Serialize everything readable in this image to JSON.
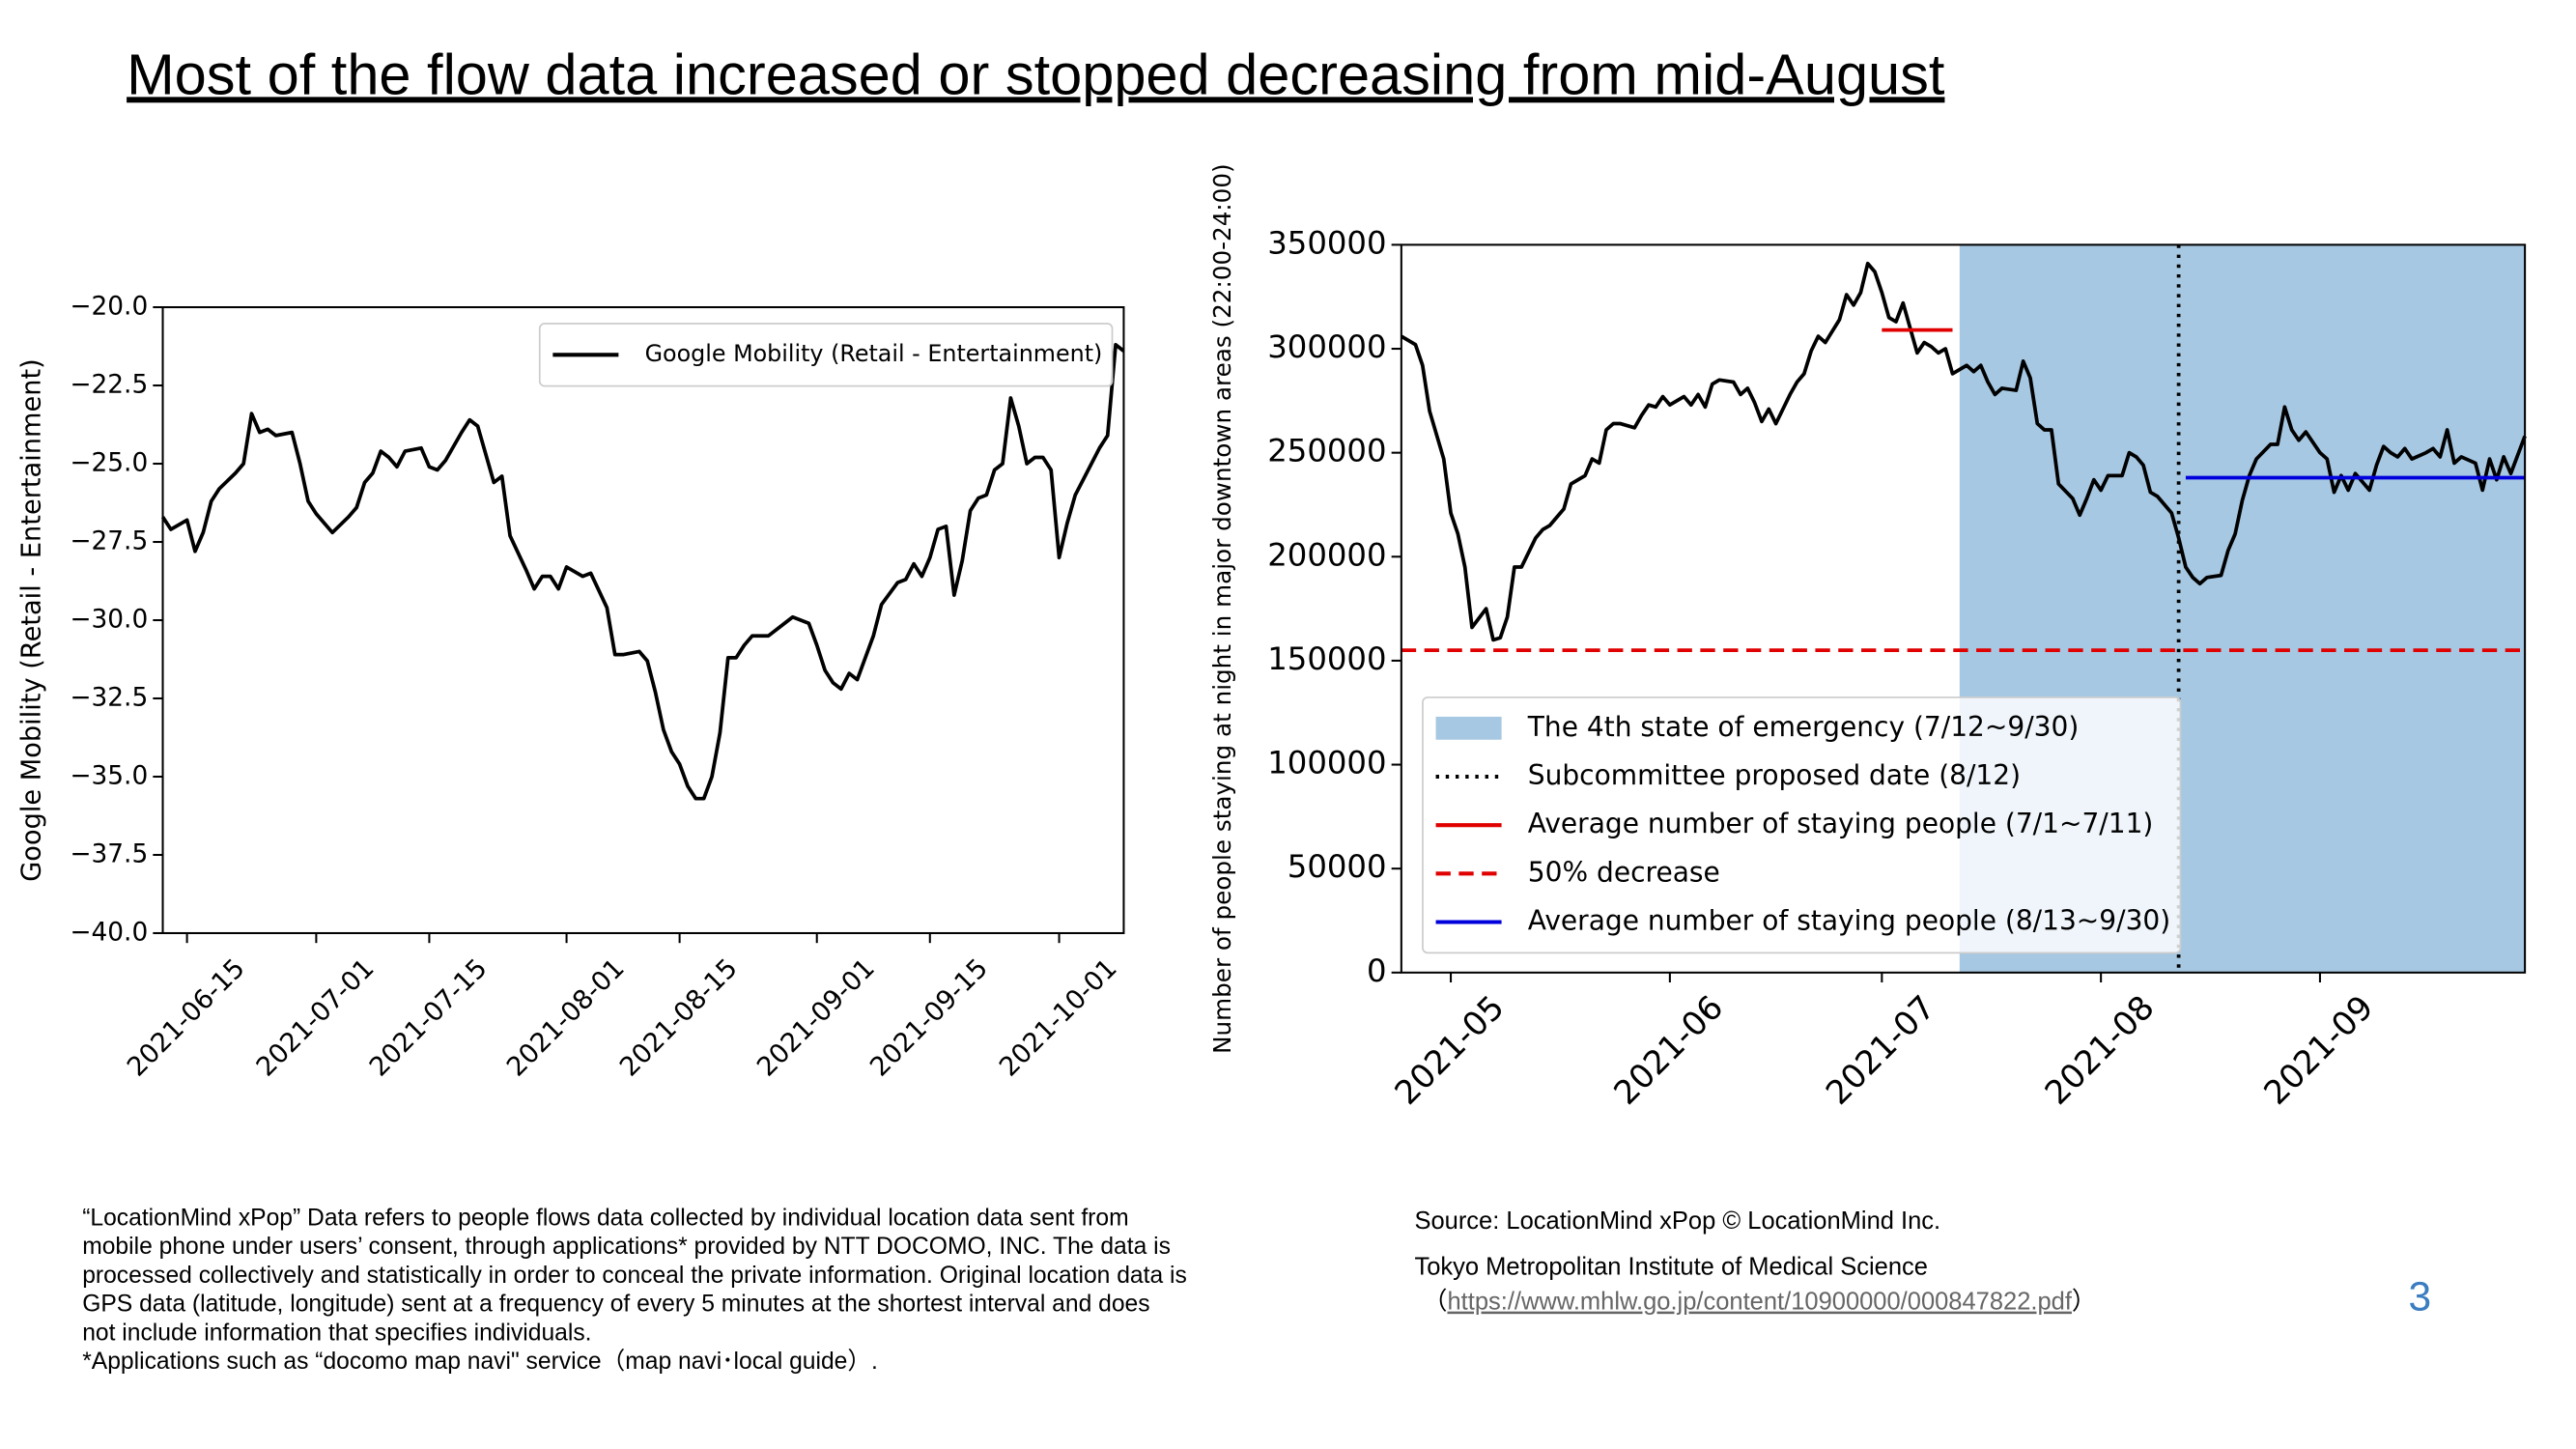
{
  "title": "Most of the flow data increased or stopped decreasing from mid-August",
  "chart_data": [
    {
      "type": "line",
      "ylabel": "Google Mobility (Retail - Entertainment)",
      "x": [
        "2021-06-12",
        "2021-06-13",
        "2021-06-15",
        "2021-06-16",
        "2021-06-17",
        "2021-06-18",
        "2021-06-19",
        "2021-06-21",
        "2021-06-22",
        "2021-06-23",
        "2021-06-24",
        "2021-06-25",
        "2021-06-26",
        "2021-06-28",
        "2021-06-29",
        "2021-06-30",
        "2021-07-01",
        "2021-07-03",
        "2021-07-05",
        "2021-07-06",
        "2021-07-07",
        "2021-07-08",
        "2021-07-09",
        "2021-07-10",
        "2021-07-11",
        "2021-07-12",
        "2021-07-14",
        "2021-07-15",
        "2021-07-16",
        "2021-07-17",
        "2021-07-19",
        "2021-07-20",
        "2021-07-21",
        "2021-07-23",
        "2021-07-24",
        "2021-07-25",
        "2021-07-27",
        "2021-07-28",
        "2021-07-29",
        "2021-07-30",
        "2021-07-31",
        "2021-08-01",
        "2021-08-03",
        "2021-08-04",
        "2021-08-06",
        "2021-08-07",
        "2021-08-08",
        "2021-08-10",
        "2021-08-11",
        "2021-08-12",
        "2021-08-13",
        "2021-08-14",
        "2021-08-15",
        "2021-08-16",
        "2021-08-17",
        "2021-08-18",
        "2021-08-19",
        "2021-08-20",
        "2021-08-21",
        "2021-08-22",
        "2021-08-23",
        "2021-08-24",
        "2021-08-26",
        "2021-08-28",
        "2021-08-29",
        "2021-08-31",
        "2021-09-01",
        "2021-09-02",
        "2021-09-03",
        "2021-09-04",
        "2021-09-05",
        "2021-09-06",
        "2021-09-07",
        "2021-09-08",
        "2021-09-09",
        "2021-09-11",
        "2021-09-12",
        "2021-09-13",
        "2021-09-14",
        "2021-09-15",
        "2021-09-16",
        "2021-09-17",
        "2021-09-18",
        "2021-09-19",
        "2021-09-20",
        "2021-09-21",
        "2021-09-22",
        "2021-09-23",
        "2021-09-24",
        "2021-09-25",
        "2021-09-26",
        "2021-09-27",
        "2021-09-28",
        "2021-09-29",
        "2021-09-30",
        "2021-10-01",
        "2021-10-02",
        "2021-10-03",
        "2021-10-04",
        "2021-10-05",
        "2021-10-06",
        "2021-10-07",
        "2021-10-08",
        "2021-10-09"
      ],
      "series": [
        {
          "name": "Google Mobility (Retail - Entertainment)",
          "color": "#000000",
          "values": [
            -26.7,
            -27.1,
            -26.8,
            -27.8,
            -27.2,
            -26.2,
            -25.8,
            -25.3,
            -25.0,
            -23.4,
            -24.0,
            -23.9,
            -24.1,
            -24.0,
            -25.0,
            -26.2,
            -26.6,
            -27.2,
            -26.7,
            -26.4,
            -25.6,
            -25.3,
            -24.6,
            -24.8,
            -25.1,
            -24.6,
            -24.5,
            -25.1,
            -25.2,
            -24.9,
            -24.0,
            -23.6,
            -23.8,
            -25.6,
            -25.4,
            -27.3,
            -28.4,
            -29.0,
            -28.6,
            -28.6,
            -29.0,
            -28.3,
            -28.6,
            -28.5,
            -29.6,
            -31.1,
            -31.1,
            -31.0,
            -31.3,
            -32.3,
            -33.5,
            -34.2,
            -34.6,
            -35.3,
            -35.7,
            -35.7,
            -35.0,
            -33.6,
            -31.2,
            -31.2,
            -30.8,
            -30.5,
            -30.5,
            -30.1,
            -29.9,
            -30.1,
            -30.8,
            -31.6,
            -32.0,
            -32.2,
            -31.7,
            -31.9,
            -31.2,
            -30.5,
            -29.5,
            -28.8,
            -28.7,
            -28.2,
            -28.6,
            -28.0,
            -27.1,
            -27.0,
            -29.2,
            -28.1,
            -26.5,
            -26.1,
            -26.0,
            -25.2,
            -25.0,
            -22.9,
            -23.8,
            -25.0,
            -24.8,
            -24.8,
            -25.2,
            -28.0,
            -26.9,
            -26.0,
            -25.5,
            -25.0,
            -24.5,
            -24.1,
            -21.2,
            -21.4
          ]
        }
      ],
      "xlim": [
        "2021-06-12",
        "2021-10-09"
      ],
      "xticks": [
        "2021-06-15",
        "2021-07-01",
        "2021-07-15",
        "2021-08-01",
        "2021-08-15",
        "2021-09-01",
        "2021-09-15",
        "2021-10-01"
      ],
      "ylim": [
        -40,
        -20
      ],
      "yticks": [
        {
          "value": -40,
          "label": "−40.0"
        },
        {
          "value": -37.5,
          "label": "−37.5"
        },
        {
          "value": -35,
          "label": "−35.0"
        },
        {
          "value": -32.5,
          "label": "−32.5"
        },
        {
          "value": -30,
          "label": "−30.0"
        },
        {
          "value": -27.5,
          "label": "−27.5"
        },
        {
          "value": -25,
          "label": "−25.0"
        },
        {
          "value": -22.5,
          "label": "−22.5"
        },
        {
          "value": -20,
          "label": "−20.0"
        }
      ],
      "legend": "upper right"
    },
    {
      "type": "line",
      "ylabel": "Number of people staying at night in major downtown areas (22:00-24:00)",
      "x": [
        "2021-04-24",
        "2021-04-26",
        "2021-04-27",
        "2021-04-28",
        "2021-04-30",
        "2021-05-01",
        "2021-05-02",
        "2021-05-03",
        "2021-05-04",
        "2021-05-06",
        "2021-05-07",
        "2021-05-08",
        "2021-05-09",
        "2021-05-10",
        "2021-05-11",
        "2021-05-13",
        "2021-05-14",
        "2021-05-15",
        "2021-05-16",
        "2021-05-17",
        "2021-05-18",
        "2021-05-20",
        "2021-05-21",
        "2021-05-22",
        "2021-05-23",
        "2021-05-24",
        "2021-05-25",
        "2021-05-27",
        "2021-05-28",
        "2021-05-29",
        "2021-05-30",
        "2021-05-31",
        "2021-06-01",
        "2021-06-03",
        "2021-06-04",
        "2021-06-05",
        "2021-06-06",
        "2021-06-07",
        "2021-06-08",
        "2021-06-10",
        "2021-06-11",
        "2021-06-12",
        "2021-06-13",
        "2021-06-14",
        "2021-06-15",
        "2021-06-16",
        "2021-06-18",
        "2021-06-19",
        "2021-06-20",
        "2021-06-21",
        "2021-06-22",
        "2021-06-23",
        "2021-06-25",
        "2021-06-26",
        "2021-06-27",
        "2021-06-28",
        "2021-06-29",
        "2021-06-30",
        "2021-07-01",
        "2021-07-02",
        "2021-07-03",
        "2021-07-04",
        "2021-07-06",
        "2021-07-07",
        "2021-07-08",
        "2021-07-09",
        "2021-07-10",
        "2021-07-11",
        "2021-07-13",
        "2021-07-14",
        "2021-07-15",
        "2021-07-16",
        "2021-07-17",
        "2021-07-18",
        "2021-07-20",
        "2021-07-21",
        "2021-07-22",
        "2021-07-23",
        "2021-07-24",
        "2021-07-25",
        "2021-07-26",
        "2021-07-28",
        "2021-07-29",
        "2021-07-30",
        "2021-07-31",
        "2021-08-01",
        "2021-08-02",
        "2021-08-04",
        "2021-08-05",
        "2021-08-06",
        "2021-08-07",
        "2021-08-08",
        "2021-08-09",
        "2021-08-11",
        "2021-08-12",
        "2021-08-13",
        "2021-08-14",
        "2021-08-15",
        "2021-08-16",
        "2021-08-18",
        "2021-08-19",
        "2021-08-20",
        "2021-08-21",
        "2021-08-22",
        "2021-08-23",
        "2021-08-25",
        "2021-08-26",
        "2021-08-27",
        "2021-08-28",
        "2021-08-29",
        "2021-08-30",
        "2021-09-01",
        "2021-09-02",
        "2021-09-03",
        "2021-09-04",
        "2021-09-05",
        "2021-09-06",
        "2021-09-08",
        "2021-09-09",
        "2021-09-10",
        "2021-09-11",
        "2021-09-12",
        "2021-09-13",
        "2021-09-14",
        "2021-09-16",
        "2021-09-17",
        "2021-09-18",
        "2021-09-19",
        "2021-09-20",
        "2021-09-21",
        "2021-09-23",
        "2021-09-24",
        "2021-09-25",
        "2021-09-26",
        "2021-09-27",
        "2021-09-28",
        "2021-09-30"
      ],
      "series": [
        {
          "color": "#000000",
          "values": [
            306000,
            302000,
            292000,
            270000,
            247000,
            221000,
            211000,
            195000,
            166000,
            175000,
            160000,
            161000,
            171000,
            195000,
            195000,
            209000,
            213000,
            215000,
            219000,
            223000,
            235000,
            239000,
            247000,
            245000,
            261000,
            264000,
            264000,
            262000,
            268000,
            273000,
            272000,
            277000,
            273000,
            277000,
            273000,
            278000,
            272000,
            283000,
            285000,
            284000,
            278000,
            281000,
            274000,
            265000,
            271000,
            264000,
            278000,
            284000,
            288000,
            299000,
            306000,
            303000,
            314000,
            326000,
            321000,
            327000,
            341000,
            337000,
            327000,
            315000,
            313000,
            322000,
            298000,
            303000,
            301000,
            298000,
            300000,
            288000,
            292000,
            289000,
            292000,
            284000,
            278000,
            281000,
            280000,
            294000,
            286000,
            264000,
            261000,
            261000,
            235000,
            228000,
            220000,
            228000,
            237000,
            232000,
            239000,
            239000,
            250000,
            248000,
            244000,
            231000,
            229000,
            221000,
            209000,
            195000,
            190000,
            187000,
            190000,
            191000,
            203000,
            211000,
            227000,
            239000,
            247000,
            254000,
            254000,
            272000,
            261000,
            256000,
            260000,
            250000,
            247000,
            231000,
            239000,
            232000,
            240000,
            232000,
            244000,
            253000,
            250000,
            248000,
            252000,
            247000,
            250000,
            252000,
            248000,
            261000,
            245000,
            248000,
            245000,
            232000,
            247000,
            237000,
            248000,
            240000,
            258000
          ]
        }
      ],
      "spans": [
        {
          "name": "The 4th state of emergency (7/12~9/30)",
          "from": "2021-07-12",
          "to": "2021-09-30",
          "color": "#a6c8e2"
        }
      ],
      "vlines": [
        {
          "name": "Subcommittee proposed date (8/12)",
          "x": "2021-08-12",
          "color": "#000000",
          "style": "dotted"
        }
      ],
      "hlines": [
        {
          "name": "Average number of staying people (7/1~7/11)",
          "y": 309000,
          "from": "2021-07-01",
          "to": "2021-07-11",
          "color": "#e00000",
          "style": "solid"
        },
        {
          "name": "50% decrease",
          "y": 155000,
          "color": "#e00000",
          "style": "dashed"
        },
        {
          "name": "Average number of staying people (8/13~9/30)",
          "y": 238000,
          "from": "2021-08-13",
          "to": "2021-09-30",
          "color": "#0000dd",
          "style": "solid"
        }
      ],
      "xlim": [
        "2021-04-24",
        "2021-09-30"
      ],
      "xticks": [
        {
          "value": "2021-05-01",
          "label": "2021-05"
        },
        {
          "value": "2021-06-01",
          "label": "2021-06"
        },
        {
          "value": "2021-07-01",
          "label": "2021-07"
        },
        {
          "value": "2021-08-01",
          "label": "2021-08"
        },
        {
          "value": "2021-09-01",
          "label": "2021-09"
        }
      ],
      "ylim": [
        0,
        350000
      ],
      "yticks": [
        0,
        50000,
        100000,
        150000,
        200000,
        250000,
        300000,
        350000
      ],
      "legend": "lower left"
    }
  ],
  "footnote": [
    "“LocationMind xPop” Data refers to people flows data collected by individual location data sent from",
    "mobile phone under users’ consent, through applications*  provided by NTT DOCOMO, INC. The data is",
    "processed collectively and statistically in order to conceal the private information. Original location data is",
    "GPS data (latitude, longitude) sent at a frequency of every 5 minutes at the shortest interval and does",
    "not include information that specifies individuals.",
    "*Applications such as “docomo map navi\" service（map navi･local guide）."
  ],
  "source": [
    "Source: LocationMind xPop © LocationMind Inc.",
    "Tokyo Metropolitan Institute of Medical Science"
  ],
  "source_url": "https://www.mhlw.go.jp/content/10900000/000847822.pdf",
  "source_url_brackets": [
    "（",
    "）"
  ],
  "page_number": 3
}
